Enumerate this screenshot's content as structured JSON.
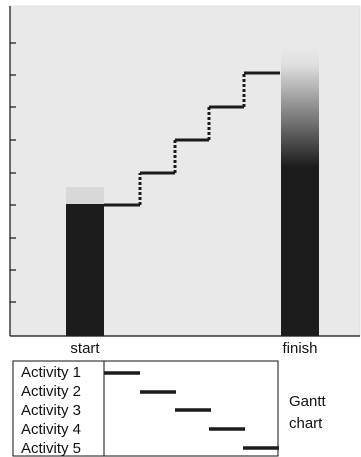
{
  "diagram": {
    "axis_labels": {
      "start": "start",
      "finish": "finish"
    },
    "gantt_rows": [
      {
        "label": "Activity 1"
      },
      {
        "label": "Activity 2"
      },
      {
        "label": "Activity 3"
      },
      {
        "label": "Activity 4"
      },
      {
        "label": "Activity 5"
      }
    ],
    "gantt_caption_line1": "Gantt",
    "gantt_caption_line2": "chart"
  },
  "colors": {
    "panel_background": "#e9e9e9",
    "bar": "#1c1c1c",
    "axis": "#111111"
  }
}
